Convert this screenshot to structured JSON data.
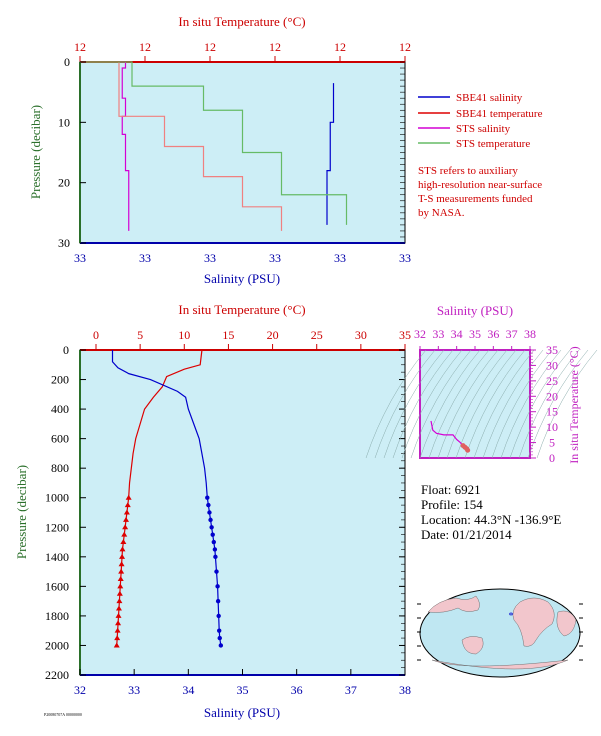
{
  "colors": {
    "salinity": "#0000cc",
    "temperature": "#dd0000",
    "sts_salinity": "#d400d4",
    "sts_temperature": "#66bb66",
    "plot_bg": "#cdeef6",
    "axis_temp": "#cc0000",
    "axis_pressure": "#2a6f2a",
    "axis_salinity": "#0000aa",
    "ts_axis": "#c020c0"
  },
  "float_info": {
    "float": "Float: 6921",
    "profile": "Profile: 154",
    "location": "Location: 44.3°N -136.9°E",
    "date": "Date: 01/21/2014"
  },
  "note_lines": [
    "STS refers to auxiliary",
    "high-resolution near-surface",
    "T-S measurements funded",
    "by NASA."
  ],
  "footer_code": "P20080707A 00000000",
  "chart_data": [
    {
      "type": "line",
      "name": "near-surface",
      "top_axis_label": "In situ Temperature (°C)",
      "top_ticks": [
        "12",
        "12",
        "12",
        "12",
        "12",
        "12"
      ],
      "bottom_axis_label": "Salinity (PSU)",
      "bottom_ticks": [
        "33",
        "33",
        "33",
        "33",
        "33",
        "33"
      ],
      "ylabel": "Pressure (decibar)",
      "y_ticks": [
        "0",
        "10",
        "20",
        "30"
      ],
      "ylim": [
        0,
        30
      ],
      "legend": {
        "placement": "right",
        "entries": [
          "SBE41 salinity",
          "SBE41 temperature",
          "STS salinity",
          "STS temperature"
        ]
      },
      "series": [
        {
          "name": "SBE41 salinity",
          "x_frac": [
            0.78,
            0.78,
            0.77,
            0.77,
            0.76,
            0.76,
            0.76,
            0.76
          ],
          "pressure": [
            3.5,
            10,
            10.5,
            18,
            18.5,
            26,
            26.5,
            27
          ]
        },
        {
          "name": "STS salinity",
          "x_frac": [
            0.12,
            0.14,
            0.13,
            0.13,
            0.14,
            0.13,
            0.14,
            0.14,
            0.15,
            0.15,
            0.15,
            0.15
          ],
          "pressure": [
            0,
            1,
            3,
            6,
            9,
            12,
            15,
            18,
            21,
            24,
            26,
            28
          ]
        },
        {
          "name": "SBE41 temperature",
          "x_frac": [
            0.0,
            0.12,
            0.12,
            0.26,
            0.26,
            0.38,
            0.38,
            0.5,
            0.5,
            0.62,
            0.62
          ],
          "pressure": [
            0,
            4,
            9,
            9,
            14,
            14,
            19,
            19,
            24,
            24,
            28
          ]
        },
        {
          "name": "STS temperature",
          "x_frac": [
            0.0,
            0.16,
            0.16,
            0.38,
            0.38,
            0.5,
            0.5,
            0.62,
            0.62,
            0.82,
            0.82
          ],
          "pressure": [
            0,
            2,
            4,
            4,
            8,
            8,
            15,
            15,
            22,
            22,
            27
          ]
        }
      ]
    },
    {
      "type": "line",
      "name": "full-profile",
      "top_axis_label": "In situ Temperature (°C)",
      "top_ticks": [
        "0",
        "5",
        "10",
        "15",
        "20",
        "25",
        "30",
        "35"
      ],
      "xlim_temperature": [
        0,
        35
      ],
      "bottom_axis_label": "Salinity (PSU)",
      "bottom_ticks": [
        "32",
        "33",
        "34",
        "35",
        "36",
        "37",
        "38"
      ],
      "xlim_salinity": [
        32,
        38
      ],
      "ylabel": "Pressure (decibar)",
      "y_ticks": [
        "0",
        "200",
        "400",
        "600",
        "800",
        "1000",
        "1200",
        "1400",
        "1600",
        "1800",
        "2000",
        "2200"
      ],
      "ylim": [
        0,
        2200
      ],
      "series": [
        {
          "name": "Temperature",
          "x": [
            12.0,
            11.8,
            10.0,
            8.0,
            7.5,
            6.5,
            5.5,
            5.0,
            4.5,
            4.2,
            4.0,
            3.8,
            3.7,
            3.6,
            3.5,
            3.4,
            3.3,
            3.2,
            3.1,
            3.0,
            2.95,
            2.9,
            2.85,
            2.8,
            2.75,
            2.7,
            2.65,
            2.6,
            2.55,
            2.5,
            2.45,
            2.4,
            2.35,
            2.3,
            2.25,
            2.2,
            2.15
          ],
          "y": [
            0,
            100,
            130,
            180,
            250,
            320,
            400,
            500,
            600,
            700,
            800,
            900,
            1000,
            1050,
            1100,
            1150,
            1200,
            1250,
            1300,
            1350,
            1400,
            1450,
            1500,
            1550,
            1600,
            1650,
            1700,
            1750,
            1800,
            1850,
            1900,
            1950,
            2000,
            2000,
            2000,
            2000,
            2000
          ]
        },
        {
          "name": "Salinity",
          "x": [
            32.6,
            32.6,
            32.7,
            32.9,
            33.3,
            33.8,
            33.95,
            34.0,
            34.1,
            34.2,
            34.25,
            34.3,
            34.33,
            34.35,
            34.37,
            34.39,
            34.41,
            34.43,
            34.45,
            34.47,
            34.49,
            34.5,
            34.52,
            34.54,
            34.55,
            34.56,
            34.57,
            34.58,
            34.6
          ],
          "y": [
            0,
            80,
            120,
            160,
            200,
            280,
            320,
            400,
            500,
            600,
            700,
            800,
            900,
            1000,
            1050,
            1100,
            1150,
            1200,
            1250,
            1300,
            1350,
            1400,
            1500,
            1600,
            1700,
            1800,
            1900,
            1950,
            2000
          ]
        }
      ]
    },
    {
      "type": "scatter",
      "name": "ts-diagram",
      "top_axis_label": "Salinity (PSU)",
      "top_ticks": [
        "32",
        "33",
        "34",
        "35",
        "36",
        "37",
        "38"
      ],
      "xlim": [
        32,
        38
      ],
      "right_axis_label": "In situ Temperature (°C)",
      "right_ticks": [
        "0",
        "5",
        "10",
        "15",
        "20",
        "25",
        "30",
        "35"
      ],
      "ylim": [
        0,
        35
      ],
      "series": [
        {
          "name": "T-S profile",
          "x": [
            32.6,
            32.7,
            32.9,
            33.3,
            33.8,
            34.0,
            34.2,
            34.35,
            34.45,
            34.55,
            34.6
          ],
          "y": [
            12.0,
            9.0,
            8.0,
            7.5,
            7.5,
            6.0,
            5.0,
            4.0,
            3.5,
            3.0,
            2.5
          ]
        }
      ]
    }
  ]
}
